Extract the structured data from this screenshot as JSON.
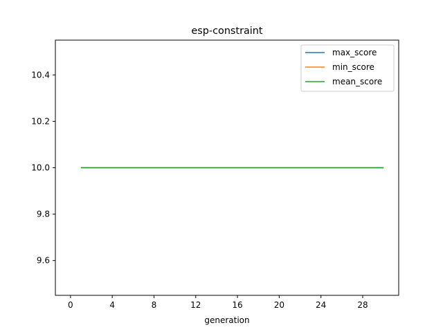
{
  "chart_data": {
    "type": "line",
    "title": "esp-constraint",
    "xlabel": "generation",
    "ylabel": "",
    "xlim": [
      -1.45,
      31.45
    ],
    "ylim": [
      9.45,
      10.55
    ],
    "xticks": [
      0,
      4,
      8,
      12,
      16,
      20,
      24,
      28
    ],
    "xtick_labels": [
      "0",
      "4",
      "8",
      "12",
      "16",
      "20",
      "24",
      "28"
    ],
    "yticks": [
      9.6,
      9.8,
      10.0,
      10.2,
      10.4
    ],
    "ytick_labels": [
      "9.6",
      "9.8",
      "10.0",
      "10.2",
      "10.4"
    ],
    "grid": false,
    "legend_position": "top-right",
    "series": [
      {
        "name": "max_score",
        "color": "#1f77b4",
        "x": [
          1,
          30
        ],
        "y": [
          10.0,
          10.0
        ]
      },
      {
        "name": "min_score",
        "color": "#ff7f0e",
        "x": [
          1,
          30
        ],
        "y": [
          10.0,
          10.0
        ]
      },
      {
        "name": "mean_score",
        "color": "#2ca02c",
        "x": [
          1,
          30
        ],
        "y": [
          10.0,
          10.0
        ]
      }
    ]
  }
}
